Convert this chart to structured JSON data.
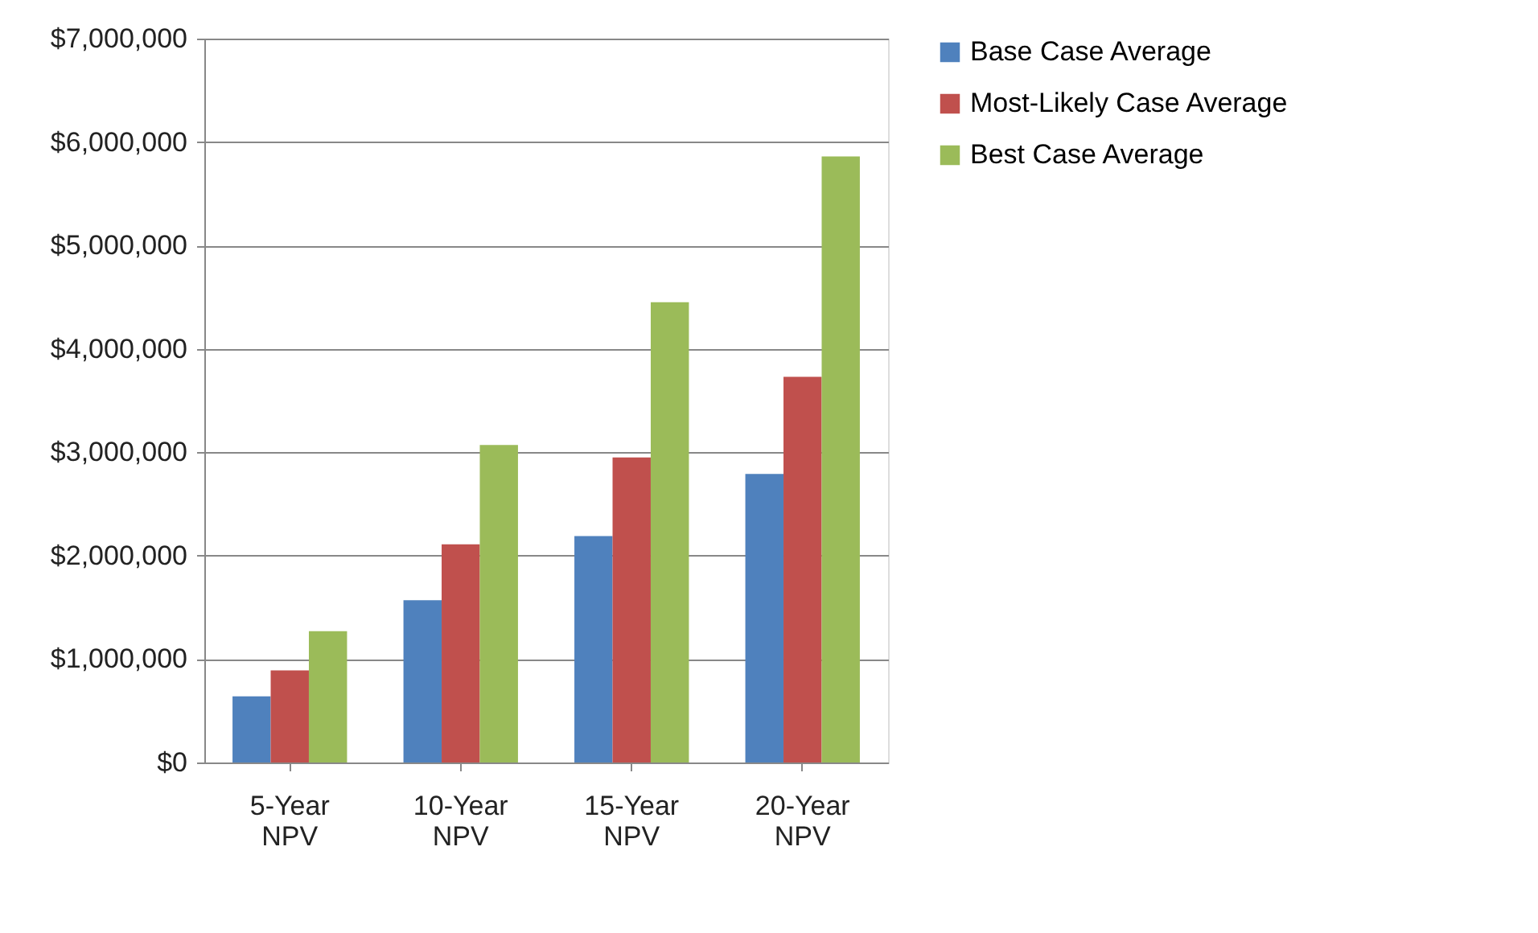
{
  "chart_data": {
    "type": "bar",
    "categories": [
      "5-Year NPV",
      "10-Year NPV",
      "15-Year NPV",
      "20-Year NPV"
    ],
    "series": [
      {
        "name": "Base Case Average",
        "color": "#4f81bd",
        "values": [
          640000,
          1570000,
          2190000,
          2790000
        ]
      },
      {
        "name": "Most-Likely Case Average",
        "color": "#c0504d",
        "values": [
          890000,
          2110000,
          2950000,
          3730000
        ]
      },
      {
        "name": "Best Case Average",
        "color": "#9bbb59",
        "values": [
          1270000,
          3070000,
          4450000,
          5860000
        ]
      }
    ],
    "ylim": [
      0,
      7000000
    ],
    "yticks": [
      {
        "value": 0,
        "label": "$0"
      },
      {
        "value": 1000000,
        "label": "$1,000,000"
      },
      {
        "value": 2000000,
        "label": "$2,000,000"
      },
      {
        "value": 3000000,
        "label": "$3,000,000"
      },
      {
        "value": 4000000,
        "label": "$4,000,000"
      },
      {
        "value": 5000000,
        "label": "$5,000,000"
      },
      {
        "value": 6000000,
        "label": "$6,000,000"
      },
      {
        "value": 7000000,
        "label": "$7,000,000"
      }
    ],
    "grid": "y",
    "legend": "right"
  }
}
